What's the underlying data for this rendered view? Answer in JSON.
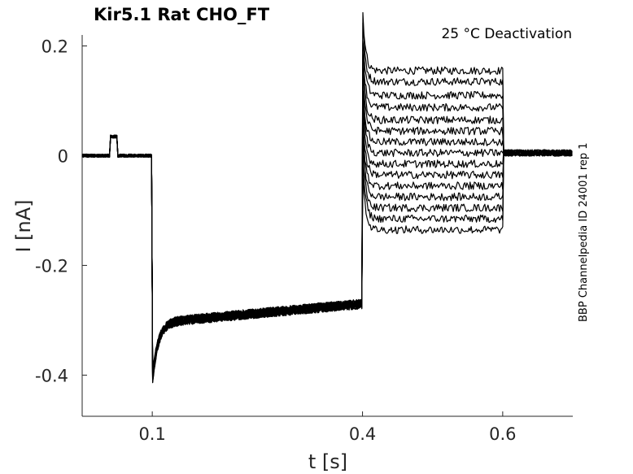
{
  "chart_data": {
    "type": "line",
    "title": "Kir5.1  Rat  CHO_FT",
    "annotation": "25 °C  Deactivation",
    "side_label": "BBP Channelpedia ID 24001 rep 1",
    "xlabel": "t [s]",
    "ylabel": "I [nA]",
    "xlim": [
      0.0,
      0.7
    ],
    "ylim": [
      -0.475,
      0.22
    ],
    "xticks": [
      {
        "value": 0.1,
        "label": "0.1"
      },
      {
        "value": 0.4,
        "label": "0.4"
      },
      {
        "value": 0.6,
        "label": "0.6"
      }
    ],
    "yticks": [
      {
        "value": 0.2,
        "label": "0.2"
      },
      {
        "value": 0.0,
        "label": "0"
      },
      {
        "value": -0.2,
        "label": "-0.2"
      },
      {
        "value": -0.4,
        "label": "-0.4"
      }
    ],
    "grid": false,
    "protocol": {
      "prepulse_start": 0.04,
      "prepulse_end": 0.05,
      "prepulse_amplitude": 0.035,
      "step_start": 0.1,
      "hyperpolarizing_peak": -0.415,
      "hyperpolarizing_end": -0.27,
      "test_start": 0.4,
      "test_end": 0.6,
      "test_levels": [
        0.155,
        0.135,
        0.11,
        0.088,
        0.065,
        0.045,
        0.025,
        0.005,
        -0.015,
        -0.035,
        -0.055,
        -0.075,
        -0.095,
        -0.115,
        -0.135
      ],
      "tail_level": 0.005
    }
  }
}
